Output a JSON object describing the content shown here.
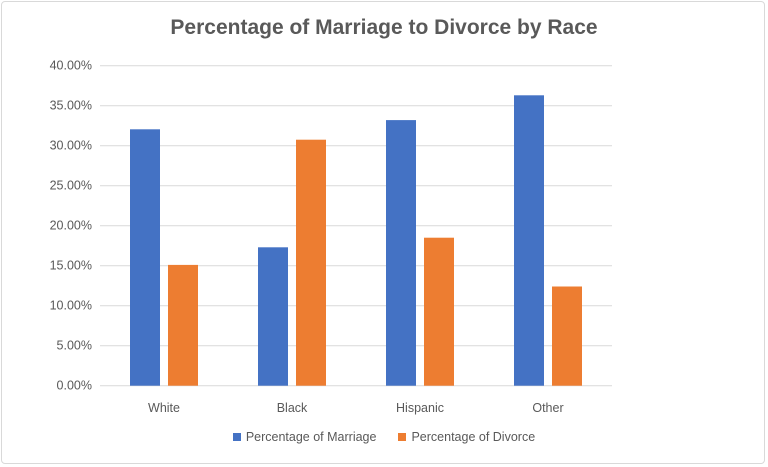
{
  "chart_data": {
    "type": "bar",
    "title": "Percentage of Marriage to Divorce by Race",
    "categories": [
      "White",
      "Black",
      "Hispanic",
      "Other"
    ],
    "series": [
      {
        "name": "Percentage of Marriage",
        "color": "#4472C4",
        "values": [
          32.05,
          17.3,
          33.2,
          36.3
        ]
      },
      {
        "name": "Percentage of Divorce",
        "color": "#ED7D31",
        "values": [
          15.1,
          30.75,
          18.5,
          12.4
        ]
      }
    ],
    "ylim": [
      0,
      40
    ],
    "yticks": [
      "0.00%",
      "5.00%",
      "10.00%",
      "15.00%",
      "20.00%",
      "25.00%",
      "30.00%",
      "35.00%",
      "40.00%"
    ],
    "grid": true,
    "legend": "bottom",
    "xlabel": "",
    "ylabel": ""
  }
}
